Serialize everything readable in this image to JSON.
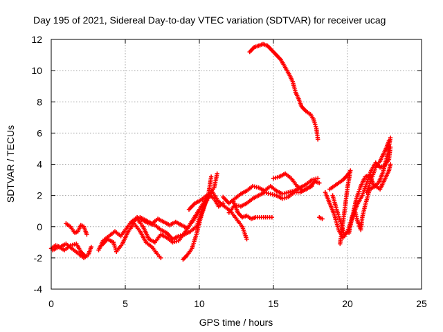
{
  "chart_data": {
    "type": "scatter",
    "title": "Day 195 of 2021, Sidereal Day-to-day VTEC variation (SDTVAR) for receiver ucag",
    "xlabel": "GPS time / hours",
    "ylabel": "SDTVAR / TECUs",
    "xlim": [
      0,
      25
    ],
    "ylim": [
      -4,
      12
    ],
    "xticks": [
      "0",
      "5",
      "10",
      "15",
      "20",
      "25"
    ],
    "yticks": [
      "-4",
      "-2",
      "0",
      "2",
      "4",
      "6",
      "8",
      "10",
      "12"
    ],
    "grid": true,
    "marker": "plus",
    "color": "#ff0000",
    "series": [
      {
        "name": "s1",
        "points": [
          [
            0.0,
            -1.4
          ],
          [
            0.3,
            -1.2
          ],
          [
            0.6,
            -1.3
          ],
          [
            1.0,
            -1.1
          ],
          [
            1.4,
            -1.4
          ],
          [
            1.8,
            -1.7
          ],
          [
            2.2,
            -2.0
          ],
          [
            2.5,
            -1.8
          ],
          [
            2.7,
            -1.3
          ]
        ]
      },
      {
        "name": "s2",
        "points": [
          [
            1.0,
            0.2
          ],
          [
            1.3,
            0.0
          ],
          [
            1.6,
            -0.4
          ],
          [
            1.8,
            -0.3
          ],
          [
            2.0,
            0.1
          ],
          [
            2.2,
            0.0
          ],
          [
            2.4,
            -0.5
          ]
        ]
      },
      {
        "name": "s3",
        "points": [
          [
            0.1,
            -1.5
          ],
          [
            0.5,
            -1.3
          ],
          [
            0.9,
            -1.5
          ],
          [
            1.3,
            -1.2
          ],
          [
            1.7,
            -1.1
          ],
          [
            2.0,
            -1.6
          ],
          [
            2.3,
            -1.9
          ]
        ]
      },
      {
        "name": "s4",
        "points": [
          [
            3.2,
            -1.5
          ],
          [
            3.5,
            -0.9
          ],
          [
            3.9,
            -0.6
          ],
          [
            4.3,
            -0.3
          ],
          [
            4.7,
            -0.6
          ],
          [
            5.0,
            -0.2
          ],
          [
            5.4,
            0.3
          ],
          [
            5.8,
            0.6
          ],
          [
            6.2,
            0.4
          ],
          [
            6.6,
            0.2
          ],
          [
            7.0,
            0.1
          ],
          [
            7.4,
            -0.2
          ],
          [
            7.8,
            -0.4
          ],
          [
            8.2,
            -0.8
          ],
          [
            8.6,
            -0.6
          ],
          [
            9.0,
            -0.5
          ],
          [
            9.4,
            -0.3
          ],
          [
            9.8,
            0.0
          ],
          [
            10.2,
            1.0
          ],
          [
            10.6,
            2.0
          ],
          [
            10.8,
            3.2
          ]
        ]
      },
      {
        "name": "s5",
        "points": [
          [
            3.4,
            -1.2
          ],
          [
            3.8,
            -0.8
          ],
          [
            4.2,
            -1.0
          ],
          [
            4.4,
            -1.6
          ],
          [
            4.8,
            -1.1
          ],
          [
            5.2,
            -0.3
          ],
          [
            5.6,
            0.2
          ],
          [
            6.0,
            -0.3
          ],
          [
            6.4,
            -1.0
          ],
          [
            6.8,
            -1.3
          ],
          [
            7.2,
            -1.8
          ],
          [
            7.4,
            -2.0
          ]
        ]
      },
      {
        "name": "s6",
        "points": [
          [
            5.4,
            0.2
          ],
          [
            5.8,
            0.5
          ],
          [
            6.2,
            0.0
          ],
          [
            6.6,
            -0.8
          ],
          [
            7.0,
            -1.0
          ],
          [
            7.4,
            -0.5
          ],
          [
            7.8,
            -0.7
          ],
          [
            8.2,
            -1.0
          ],
          [
            8.6,
            -0.9
          ],
          [
            9.0,
            -0.4
          ],
          [
            9.4,
            0.2
          ],
          [
            9.8,
            0.8
          ],
          [
            10.2,
            1.4
          ],
          [
            10.6,
            2.0
          ],
          [
            11.0,
            2.5
          ],
          [
            11.2,
            3.4
          ]
        ]
      },
      {
        "name": "s7",
        "points": [
          [
            6.0,
            0.6
          ],
          [
            6.4,
            0.4
          ],
          [
            6.8,
            0.2
          ],
          [
            7.2,
            0.5
          ],
          [
            7.6,
            0.3
          ],
          [
            8.0,
            0.1
          ],
          [
            8.4,
            0.3
          ],
          [
            8.8,
            0.1
          ],
          [
            9.2,
            -0.1
          ],
          [
            9.6,
            0.4
          ],
          [
            10.0,
            1.0
          ]
        ]
      },
      {
        "name": "s8",
        "points": [
          [
            8.9,
            -2.1
          ],
          [
            9.2,
            -1.8
          ],
          [
            9.5,
            -1.4
          ],
          [
            9.8,
            -0.5
          ],
          [
            10.1,
            0.6
          ],
          [
            10.4,
            1.5
          ],
          [
            10.7,
            2.0
          ],
          [
            11.0,
            1.8
          ],
          [
            11.3,
            1.3
          ],
          [
            11.6,
            1.5
          ]
        ]
      },
      {
        "name": "s9",
        "points": [
          [
            9.3,
            1.1
          ],
          [
            9.7,
            1.5
          ],
          [
            10.1,
            1.7
          ],
          [
            10.5,
            2.0
          ],
          [
            10.9,
            2.2
          ],
          [
            11.3,
            1.6
          ],
          [
            11.7,
            1.3
          ],
          [
            12.1,
            1.0
          ],
          [
            12.5,
            0.5
          ],
          [
            12.9,
            0.0
          ],
          [
            13.2,
            -0.8
          ]
        ]
      },
      {
        "name": "s10",
        "points": [
          [
            11.6,
            1.9
          ],
          [
            12.0,
            1.5
          ],
          [
            12.4,
            1.8
          ],
          [
            12.8,
            2.1
          ],
          [
            13.2,
            2.3
          ],
          [
            13.6,
            2.6
          ],
          [
            14.0,
            2.5
          ],
          [
            14.4,
            2.3
          ],
          [
            14.8,
            2.6
          ],
          [
            15.2,
            2.3
          ],
          [
            15.6,
            2.1
          ],
          [
            16.0,
            2.2
          ],
          [
            16.4,
            2.3
          ],
          [
            16.8,
            2.5
          ],
          [
            17.2,
            2.7
          ],
          [
            17.6,
            3.0
          ],
          [
            18.0,
            3.1
          ]
        ]
      },
      {
        "name": "s11",
        "points": [
          [
            12.0,
            0.9
          ],
          [
            12.4,
            1.4
          ],
          [
            12.8,
            1.3
          ],
          [
            13.2,
            1.5
          ],
          [
            13.6,
            1.8
          ],
          [
            14.0,
            2.0
          ],
          [
            14.4,
            2.2
          ],
          [
            14.8,
            2.1
          ],
          [
            15.2,
            2.0
          ],
          [
            15.6,
            1.8
          ],
          [
            16.0,
            1.9
          ],
          [
            16.4,
            2.2
          ],
          [
            16.8,
            2.2
          ],
          [
            17.2,
            2.4
          ],
          [
            17.6,
            2.6
          ]
        ]
      },
      {
        "name": "s12",
        "points": [
          [
            12.3,
            1.6
          ],
          [
            12.6,
            0.9
          ],
          [
            12.9,
            0.6
          ],
          [
            13.2,
            0.7
          ],
          [
            13.5,
            0.5
          ],
          [
            13.8,
            0.6
          ],
          [
            14.2,
            0.6
          ],
          [
            14.6,
            0.6
          ],
          [
            14.9,
            0.6
          ]
        ]
      },
      {
        "name": "s13",
        "points": [
          [
            15.0,
            3.1
          ],
          [
            15.4,
            3.2
          ],
          [
            15.8,
            3.4
          ],
          [
            16.2,
            3.1
          ],
          [
            16.6,
            2.6
          ],
          [
            17.0,
            2.3
          ],
          [
            17.4,
            2.5
          ],
          [
            17.8,
            2.9
          ],
          [
            18.1,
            2.8
          ]
        ]
      },
      {
        "name": "s14",
        "points": [
          [
            13.4,
            11.2
          ],
          [
            13.7,
            11.5
          ],
          [
            14.0,
            11.6
          ],
          [
            14.3,
            11.7
          ],
          [
            14.6,
            11.6
          ],
          [
            14.9,
            11.3
          ],
          [
            15.2,
            11.0
          ],
          [
            15.5,
            10.7
          ],
          [
            15.8,
            10.2
          ],
          [
            16.1,
            9.7
          ],
          [
            16.3,
            9.3
          ],
          [
            16.5,
            8.6
          ],
          [
            16.7,
            8.2
          ],
          [
            16.9,
            7.7
          ],
          [
            17.2,
            7.4
          ],
          [
            17.5,
            7.2
          ],
          [
            17.7,
            6.9
          ],
          [
            17.9,
            6.3
          ],
          [
            18.0,
            5.6
          ]
        ]
      },
      {
        "name": "s15",
        "points": [
          [
            18.1,
            0.6
          ],
          [
            18.3,
            0.5
          ]
        ]
      },
      {
        "name": "s16",
        "points": [
          [
            18.5,
            2.2
          ],
          [
            18.8,
            1.5
          ],
          [
            19.1,
            0.8
          ],
          [
            19.4,
            -0.2
          ],
          [
            19.7,
            -0.7
          ],
          [
            20.0,
            -0.3
          ],
          [
            20.3,
            0.5
          ],
          [
            20.6,
            1.8
          ],
          [
            20.9,
            2.6
          ],
          [
            21.2,
            3.2
          ],
          [
            21.5,
            3.3
          ],
          [
            21.8,
            2.6
          ],
          [
            22.1,
            2.8
          ],
          [
            22.4,
            3.5
          ],
          [
            22.7,
            4.6
          ],
          [
            22.9,
            5.7
          ]
        ]
      },
      {
        "name": "s17",
        "points": [
          [
            19.0,
            2.0
          ],
          [
            19.3,
            1.0
          ],
          [
            19.6,
            0.1
          ],
          [
            19.8,
            -0.6
          ],
          [
            20.1,
            -0.2
          ],
          [
            20.4,
            0.8
          ],
          [
            20.7,
            1.5
          ],
          [
            21.0,
            2.0
          ],
          [
            21.3,
            2.8
          ],
          [
            21.6,
            3.6
          ],
          [
            21.9,
            4.1
          ],
          [
            22.2,
            3.8
          ],
          [
            22.5,
            3.9
          ],
          [
            22.8,
            4.3
          ],
          [
            22.9,
            5.1
          ]
        ]
      },
      {
        "name": "s18",
        "points": [
          [
            18.8,
            2.4
          ],
          [
            19.1,
            2.6
          ],
          [
            19.4,
            2.8
          ],
          [
            19.7,
            3.0
          ],
          [
            20.0,
            3.3
          ],
          [
            20.2,
            3.6
          ],
          [
            20.0,
            2.5
          ],
          [
            19.8,
            1.0
          ],
          [
            19.6,
            -0.4
          ],
          [
            19.5,
            -1.1
          ]
        ]
      },
      {
        "name": "s19",
        "points": [
          [
            20.1,
            -0.4
          ],
          [
            20.3,
            0.6
          ],
          [
            20.5,
            1.0
          ],
          [
            20.7,
            0.3
          ],
          [
            20.9,
            -0.2
          ],
          [
            21.0,
            0.6
          ],
          [
            21.2,
            1.4
          ],
          [
            21.5,
            2.4
          ],
          [
            21.9,
            2.6
          ],
          [
            22.2,
            2.4
          ],
          [
            22.5,
            3.0
          ],
          [
            22.8,
            3.6
          ],
          [
            22.9,
            4.0
          ]
        ]
      },
      {
        "name": "s20",
        "points": [
          [
            21.3,
            2.2
          ],
          [
            21.6,
            3.0
          ],
          [
            21.9,
            3.8
          ],
          [
            22.2,
            4.2
          ],
          [
            22.4,
            4.6
          ],
          [
            22.6,
            5.0
          ],
          [
            22.8,
            5.5
          ]
        ]
      }
    ]
  }
}
